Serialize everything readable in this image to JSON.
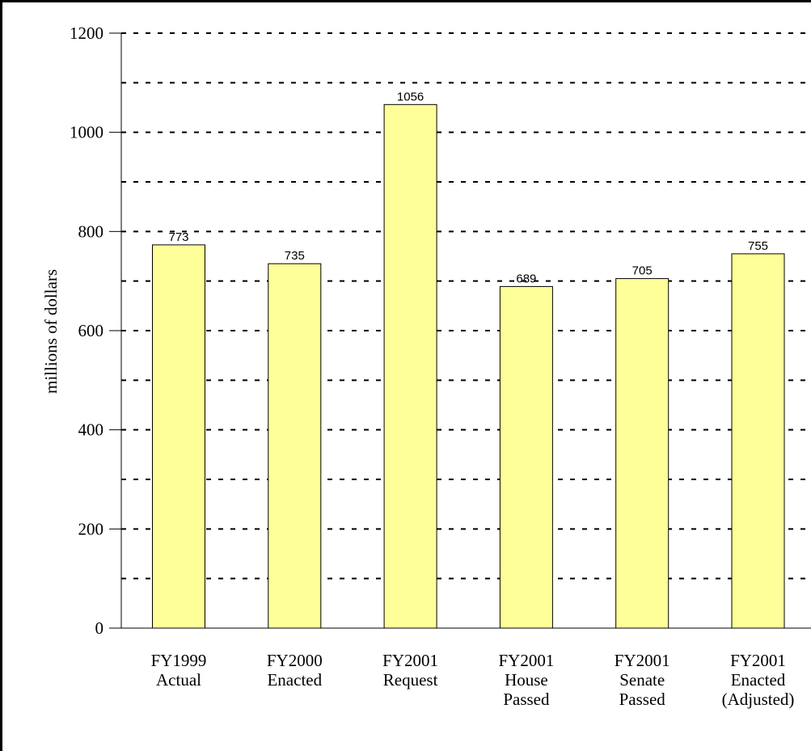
{
  "chart_data": {
    "type": "bar",
    "title": "",
    "ylabel": "millions of dollars",
    "xlabel": "",
    "ylim": [
      0,
      1200
    ],
    "yticks": [
      0,
      200,
      400,
      600,
      800,
      1000,
      1200
    ],
    "grid": "horizontal dashed every 100",
    "categories": [
      [
        "FY1999",
        "Actual"
      ],
      [
        "FY2000",
        "Enacted"
      ],
      [
        "FY2001",
        "Request"
      ],
      [
        "FY2001",
        "House",
        "Passed"
      ],
      [
        "FY2001",
        "Senate",
        "Passed"
      ],
      [
        "FY2001",
        "Enacted",
        "(Adjusted)"
      ]
    ],
    "values": [
      773,
      735,
      1056,
      689,
      705,
      755
    ],
    "data_labels": [
      "773",
      "735",
      "1056",
      "689",
      "705",
      "755"
    ],
    "bar_color": "#ffff99",
    "bar_border_color": "#000000"
  }
}
